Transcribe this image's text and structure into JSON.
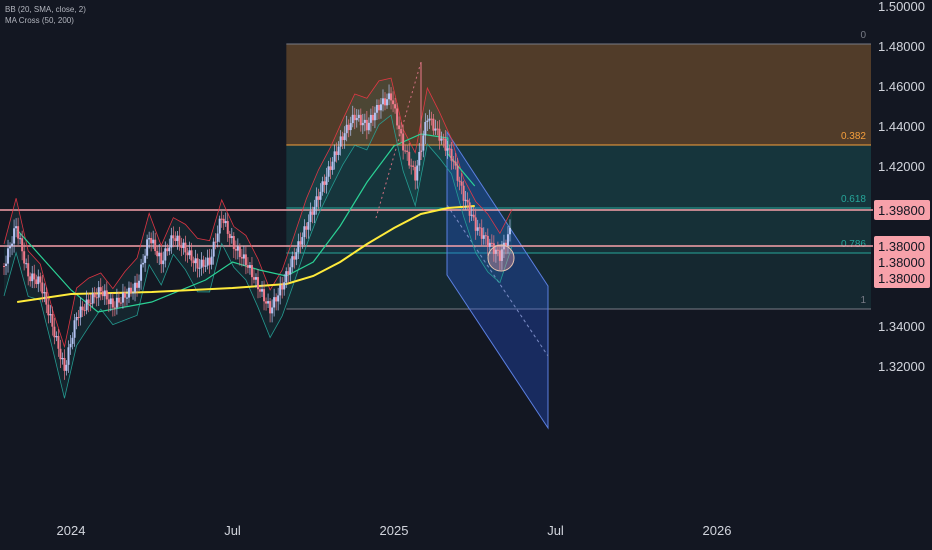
{
  "indicators": {
    "bb_label": "BB (20, SMA, close, 2)",
    "ma_label": "MA Cross (50, 200)"
  },
  "colors": {
    "background": "#131722",
    "candle_up": "#b4c3f2",
    "candle_down": "#f07a8a",
    "bb_band": "#f23645",
    "bb_basis": "#26a69a",
    "ma50": "#2bd195",
    "ma200": "#ffeb3b",
    "resistance_line": "#f7a1aa",
    "price_tag": "#f7a1aa",
    "fib_orange": "#f59f3c",
    "fib_teal": "#26a69a",
    "fib_gray": "#787b86",
    "channel": "#2962ff"
  },
  "chart_data": {
    "type": "candlestick",
    "instrument_hint": "",
    "y_axis": {
      "range": [
        1.3125,
        1.5
      ],
      "ticks": [
        "1.50000",
        "1.48000",
        "1.46000",
        "1.44000",
        "1.42000",
        "1.34000",
        "1.32000"
      ],
      "tick_values": [
        1.5,
        1.48,
        1.46,
        1.44,
        1.42,
        1.34,
        1.32
      ]
    },
    "x_axis": {
      "labels": [
        "2024",
        "Jul",
        "2025",
        "Jul",
        "2026"
      ],
      "label_dates": [
        "2024-01",
        "2024-07",
        "2025-01",
        "2025-07",
        "2026-01"
      ]
    },
    "price_tags": [
      {
        "label": "1.39800",
        "value": 1.398
      },
      {
        "label": "1.38000",
        "value": 1.38
      },
      {
        "label": "1.38000",
        "value": 1.372
      },
      {
        "label": "1.38000",
        "value": 1.364
      }
    ],
    "horizontal_lines": [
      {
        "value": 1.398,
        "label": "1.39800"
      },
      {
        "value": 1.38,
        "label": "1.38000"
      }
    ],
    "fibonacci": {
      "start_date": "2024-09",
      "end_date": "2025-05",
      "levels": [
        {
          "ratio_label": "0",
          "value": 1.481
        },
        {
          "ratio_label": "0.382",
          "value": 1.4305
        },
        {
          "ratio_label": "0.618",
          "value": 1.399
        },
        {
          "ratio_label": "0.786",
          "value": 1.3765
        },
        {
          "ratio_label": "1",
          "value": 1.3485
        }
      ]
    },
    "channel": {
      "upper": [
        [
          "2025-03",
          1.455
        ],
        [
          "2025-06",
          1.398
        ]
      ],
      "lower": [
        [
          "2025-03",
          1.401
        ],
        [
          "2025-06",
          1.348
        ]
      ],
      "midline_dashed": [
        [
          "2025-03",
          1.428
        ],
        [
          "2025-07",
          1.365
        ]
      ]
    },
    "highlight_circle": {
      "date": "2025-05",
      "value": 1.376
    },
    "series": [
      {
        "name": "MA 50",
        "points": [
          [
            "2023-11",
            1.388
          ],
          [
            "2024-01",
            1.358
          ],
          [
            "2024-02",
            1.347
          ],
          [
            "2024-04",
            1.352
          ],
          [
            "2024-06",
            1.363
          ],
          [
            "2024-07",
            1.372
          ],
          [
            "2024-08",
            1.368
          ],
          [
            "2024-09",
            1.365
          ],
          [
            "2024-10",
            1.372
          ],
          [
            "2024-11",
            1.39
          ],
          [
            "2024-12",
            1.412
          ],
          [
            "2025-01",
            1.43
          ],
          [
            "2025-02",
            1.436
          ],
          [
            "2025-03",
            1.434
          ],
          [
            "2025-03",
            1.426
          ],
          [
            "2025-04",
            1.41
          ]
        ]
      },
      {
        "name": "MA 200",
        "points": [
          [
            "2023-11",
            1.352
          ],
          [
            "2024-01",
            1.356
          ],
          [
            "2024-04",
            1.357
          ],
          [
            "2024-07",
            1.359
          ],
          [
            "2024-09",
            1.361
          ],
          [
            "2024-10",
            1.365
          ],
          [
            "2024-11",
            1.372
          ],
          [
            "2024-12",
            1.381
          ],
          [
            "2025-01",
            1.389
          ],
          [
            "2025-02",
            1.396
          ],
          [
            "2025-03",
            1.399
          ],
          [
            "2025-04",
            1.4
          ]
        ]
      }
    ],
    "close_path": [
      [
        "2023-11",
        1.37
      ],
      [
        "2023-12",
        1.39
      ],
      [
        "2023-12",
        1.365
      ],
      [
        "2024-01",
        1.362
      ],
      [
        "2024-01",
        1.34
      ],
      [
        "2024-02",
        1.318
      ],
      [
        "2024-02",
        1.345
      ],
      [
        "2024-03",
        1.352
      ],
      [
        "2024-03",
        1.358
      ],
      [
        "2024-04",
        1.35
      ],
      [
        "2024-04",
        1.355
      ],
      [
        "2024-05",
        1.36
      ],
      [
        "2024-05",
        1.385
      ],
      [
        "2024-06",
        1.372
      ],
      [
        "2024-06",
        1.385
      ],
      [
        "2024-07",
        1.378
      ],
      [
        "2024-07",
        1.37
      ],
      [
        "2024-07",
        1.372
      ],
      [
        "2024-08",
        1.395
      ],
      [
        "2024-08",
        1.38
      ],
      [
        "2024-09",
        1.372
      ],
      [
        "2024-09",
        1.36
      ],
      [
        "2024-10",
        1.348
      ],
      [
        "2024-10",
        1.36
      ],
      [
        "2024-10",
        1.375
      ],
      [
        "2024-11",
        1.39
      ],
      [
        "2024-11",
        1.405
      ],
      [
        "2024-12",
        1.42
      ],
      [
        "2024-12",
        1.435
      ],
      [
        "2024-12",
        1.445
      ],
      [
        "2025-01",
        1.44
      ],
      [
        "2025-01",
        1.45
      ],
      [
        "2025-02",
        1.455
      ],
      [
        "2025-02",
        1.43
      ],
      [
        "2025-02",
        1.415
      ],
      [
        "2025-03",
        1.445
      ],
      [
        "2025-03",
        1.435
      ],
      [
        "2025-04",
        1.425
      ],
      [
        "2025-04",
        1.405
      ],
      [
        "2025-04",
        1.39
      ],
      [
        "2025-05",
        1.382
      ],
      [
        "2025-05",
        1.375
      ],
      [
        "2025-05",
        1.39
      ]
    ]
  }
}
